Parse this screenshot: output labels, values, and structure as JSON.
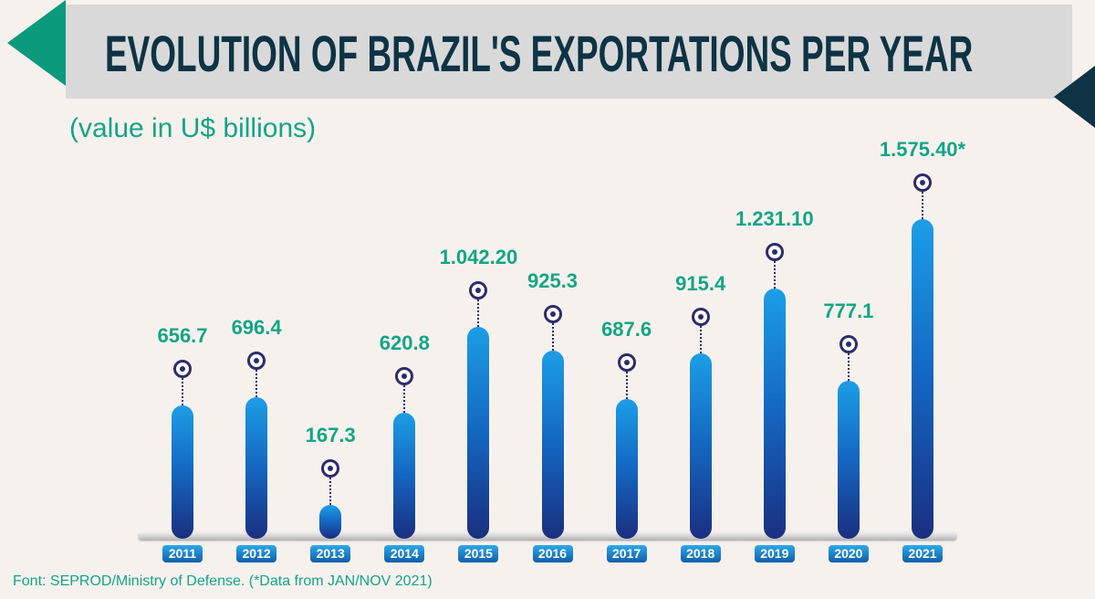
{
  "chart_data": {
    "type": "bar",
    "title": "EVOLUTION OF BRAZIL'S EXPORTATIONS PER YEAR",
    "subtitle": "(value in U$ billions)",
    "categories": [
      "2011",
      "2012",
      "2013",
      "2014",
      "2015",
      "2016",
      "2017",
      "2018",
      "2019",
      "2020",
      "2021"
    ],
    "values": [
      656.7,
      696.4,
      167.3,
      620.8,
      1042.2,
      925.3,
      687.6,
      915.4,
      1231.1,
      777.1,
      1575.4
    ],
    "value_labels": [
      "656.7",
      "696.4",
      "167.3",
      "620.8",
      "1.042.20",
      "925.3",
      "687.6",
      "915.4",
      "1.231.10",
      "777.1",
      "1.575.40*"
    ],
    "xlabel": "",
    "ylabel": "",
    "ylim": [
      0,
      1575.4
    ],
    "grid": false,
    "colors": {
      "bar": "#1466c0",
      "label": "#12a585",
      "title": "#0d3345",
      "marker": "#2c2c6b"
    }
  },
  "footer": {
    "source": "Font: SEPROD/Ministry of Defense. (*Data from JAN/NOV 2021)"
  }
}
